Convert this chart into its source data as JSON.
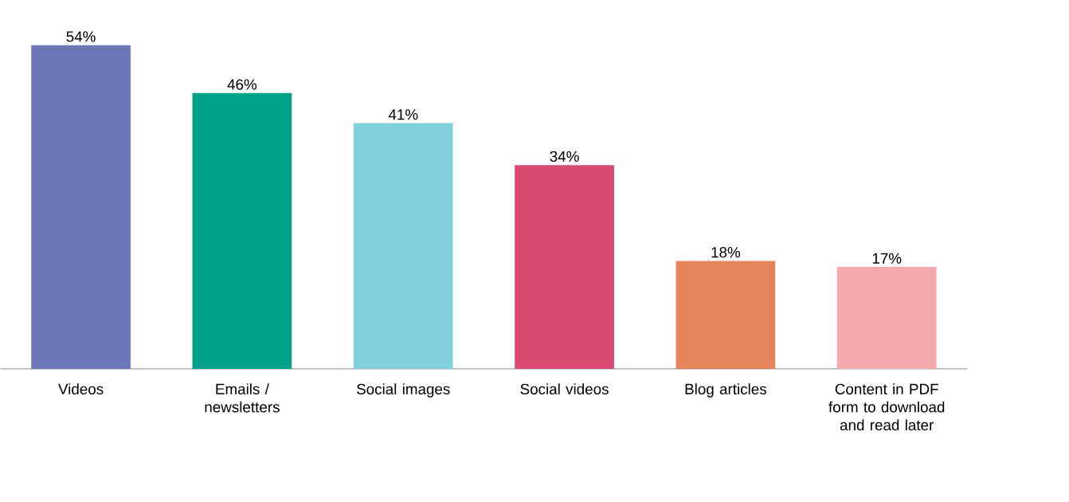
{
  "chart_data": {
    "type": "bar",
    "categories": [
      "Videos",
      "Emails / newsletters",
      "Social images",
      "Social videos",
      "Blog articles",
      "Content in PDF form to download and read later"
    ],
    "values": [
      54,
      46,
      41,
      34,
      18,
      17
    ],
    "value_labels": [
      "54%",
      "46%",
      "41%",
      "34%",
      "18%",
      "17%"
    ],
    "colors": [
      "#6e78b9",
      "#00a38a",
      "#82d0dc",
      "#d84a72",
      "#e4845a",
      "#f6a9ad"
    ]
  }
}
